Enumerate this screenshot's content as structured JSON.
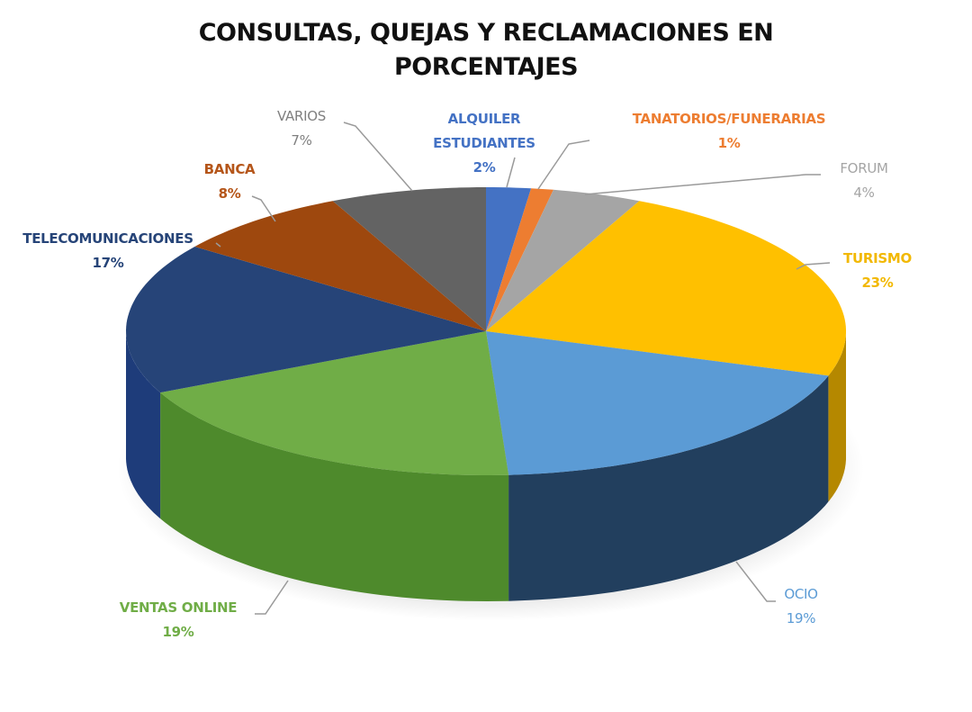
{
  "title": {
    "line1": "CONSULTAS, QUEJAS Y RECLAMACIONES EN",
    "line2": "PORCENTAJES"
  },
  "chart_data": {
    "type": "pie",
    "style": "3d",
    "title": "CONSULTAS, QUEJAS Y RECLAMACIONES EN PORCENTAJES",
    "start_angle": "12 o'clock, clockwise",
    "unit": "%",
    "legend": "none (data labels with leader lines)",
    "categories": [
      "ALQUILER ESTUDIANTES",
      "TANATORIOS/FUNERARIAS",
      "FORUM",
      "TURISMO",
      "OCIO",
      "VENTAS ONLINE",
      "TELECOMUNICACIONES",
      "BANCA",
      "VARIOS"
    ],
    "values": [
      2,
      1,
      4,
      23,
      19,
      19,
      17,
      8,
      7
    ],
    "slices": [
      {
        "label": "ALQUILER ESTUDIANTES",
        "line1": "ALQUILER",
        "line2": "ESTUDIANTES",
        "pct_label": "2%",
        "value": 2,
        "color": "#4472C4",
        "side": "#2E5597",
        "text_color": "#4472C4"
      },
      {
        "label": "TANATORIOS/FUNERARIAS",
        "line1": "TANATORIOS/FUNERARIAS",
        "line2": "",
        "pct_label": "1%",
        "value": 1,
        "color": "#ED7D31",
        "side": "#B35A1E",
        "text_color": "#ED7D31"
      },
      {
        "label": "FORUM",
        "line1": "FORUM",
        "line2": "",
        "pct_label": "4%",
        "value": 4,
        "color": "#A5A5A5",
        "side": "#7A7A7A",
        "text_color": "#A5A5A5"
      },
      {
        "label": "TURISMO",
        "line1": "TURISMO",
        "line2": "",
        "pct_label": "23%",
        "value": 23,
        "color": "#FFC000",
        "side": "#B58800",
        "text_color": "#F2B800"
      },
      {
        "label": "OCIO",
        "line1": "OCIO",
        "line2": "",
        "pct_label": "19%",
        "value": 19,
        "color": "#5B9BD5",
        "side": "#223F5E",
        "text_color": "#5B9BD5"
      },
      {
        "label": "VENTAS ONLINE",
        "line1": "VENTAS ONLINE",
        "line2": "",
        "pct_label": "19%",
        "value": 19,
        "color": "#70AD47",
        "side": "#4E8A2C",
        "text_color": "#70AD47"
      },
      {
        "label": "TELECOMUNICACIONES",
        "line1": "TELECOMUNICACIONES",
        "line2": "",
        "pct_label": "17%",
        "value": 17,
        "color": "#264478",
        "side": "#1E3C7A",
        "text_color": "#264478"
      },
      {
        "label": "BANCA",
        "line1": "BANCA",
        "line2": "",
        "pct_label": "8%",
        "value": 8,
        "color": "#9E480E",
        "side": "#7A370A",
        "text_color": "#B5561A"
      },
      {
        "label": "VARIOS",
        "line1": "VARIOS",
        "line2": "",
        "pct_label": "7%",
        "value": 7,
        "color": "#636363",
        "side": "#4A4A4A",
        "text_color": "#7F7F7F"
      }
    ]
  }
}
